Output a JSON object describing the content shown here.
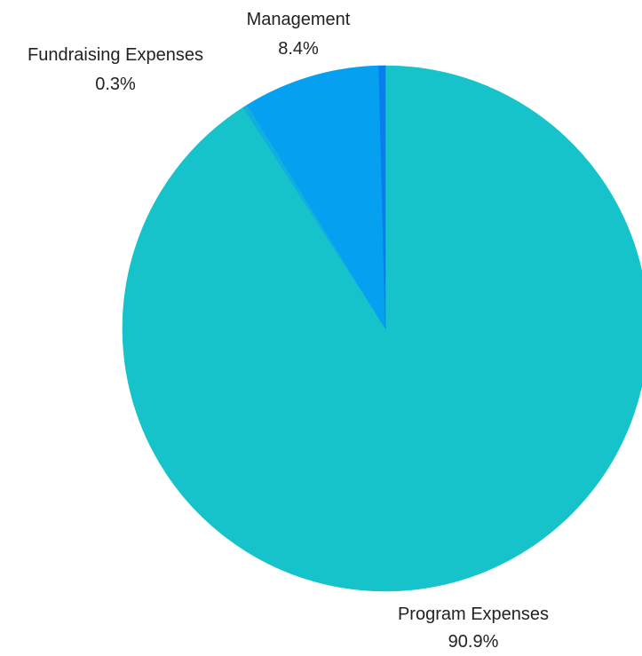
{
  "chart_data": {
    "type": "pie",
    "title": "",
    "slices": [
      {
        "label": "Program Expenses",
        "value": 90.9,
        "value_label": "90.9%",
        "color": "#17C3CB"
      },
      {
        "label": "Fundraising Expenses",
        "value": 0.3,
        "value_label": "0.3%",
        "color": "#12AEE0"
      },
      {
        "label": "Management",
        "value": 8.4,
        "value_label": "8.4%",
        "color": "#05A0EF"
      },
      {
        "label": "",
        "value": 0.4,
        "value_label": "",
        "color": "#0B7BF0"
      }
    ],
    "start_angle": "12 o'clock",
    "direction": "clockwise"
  }
}
